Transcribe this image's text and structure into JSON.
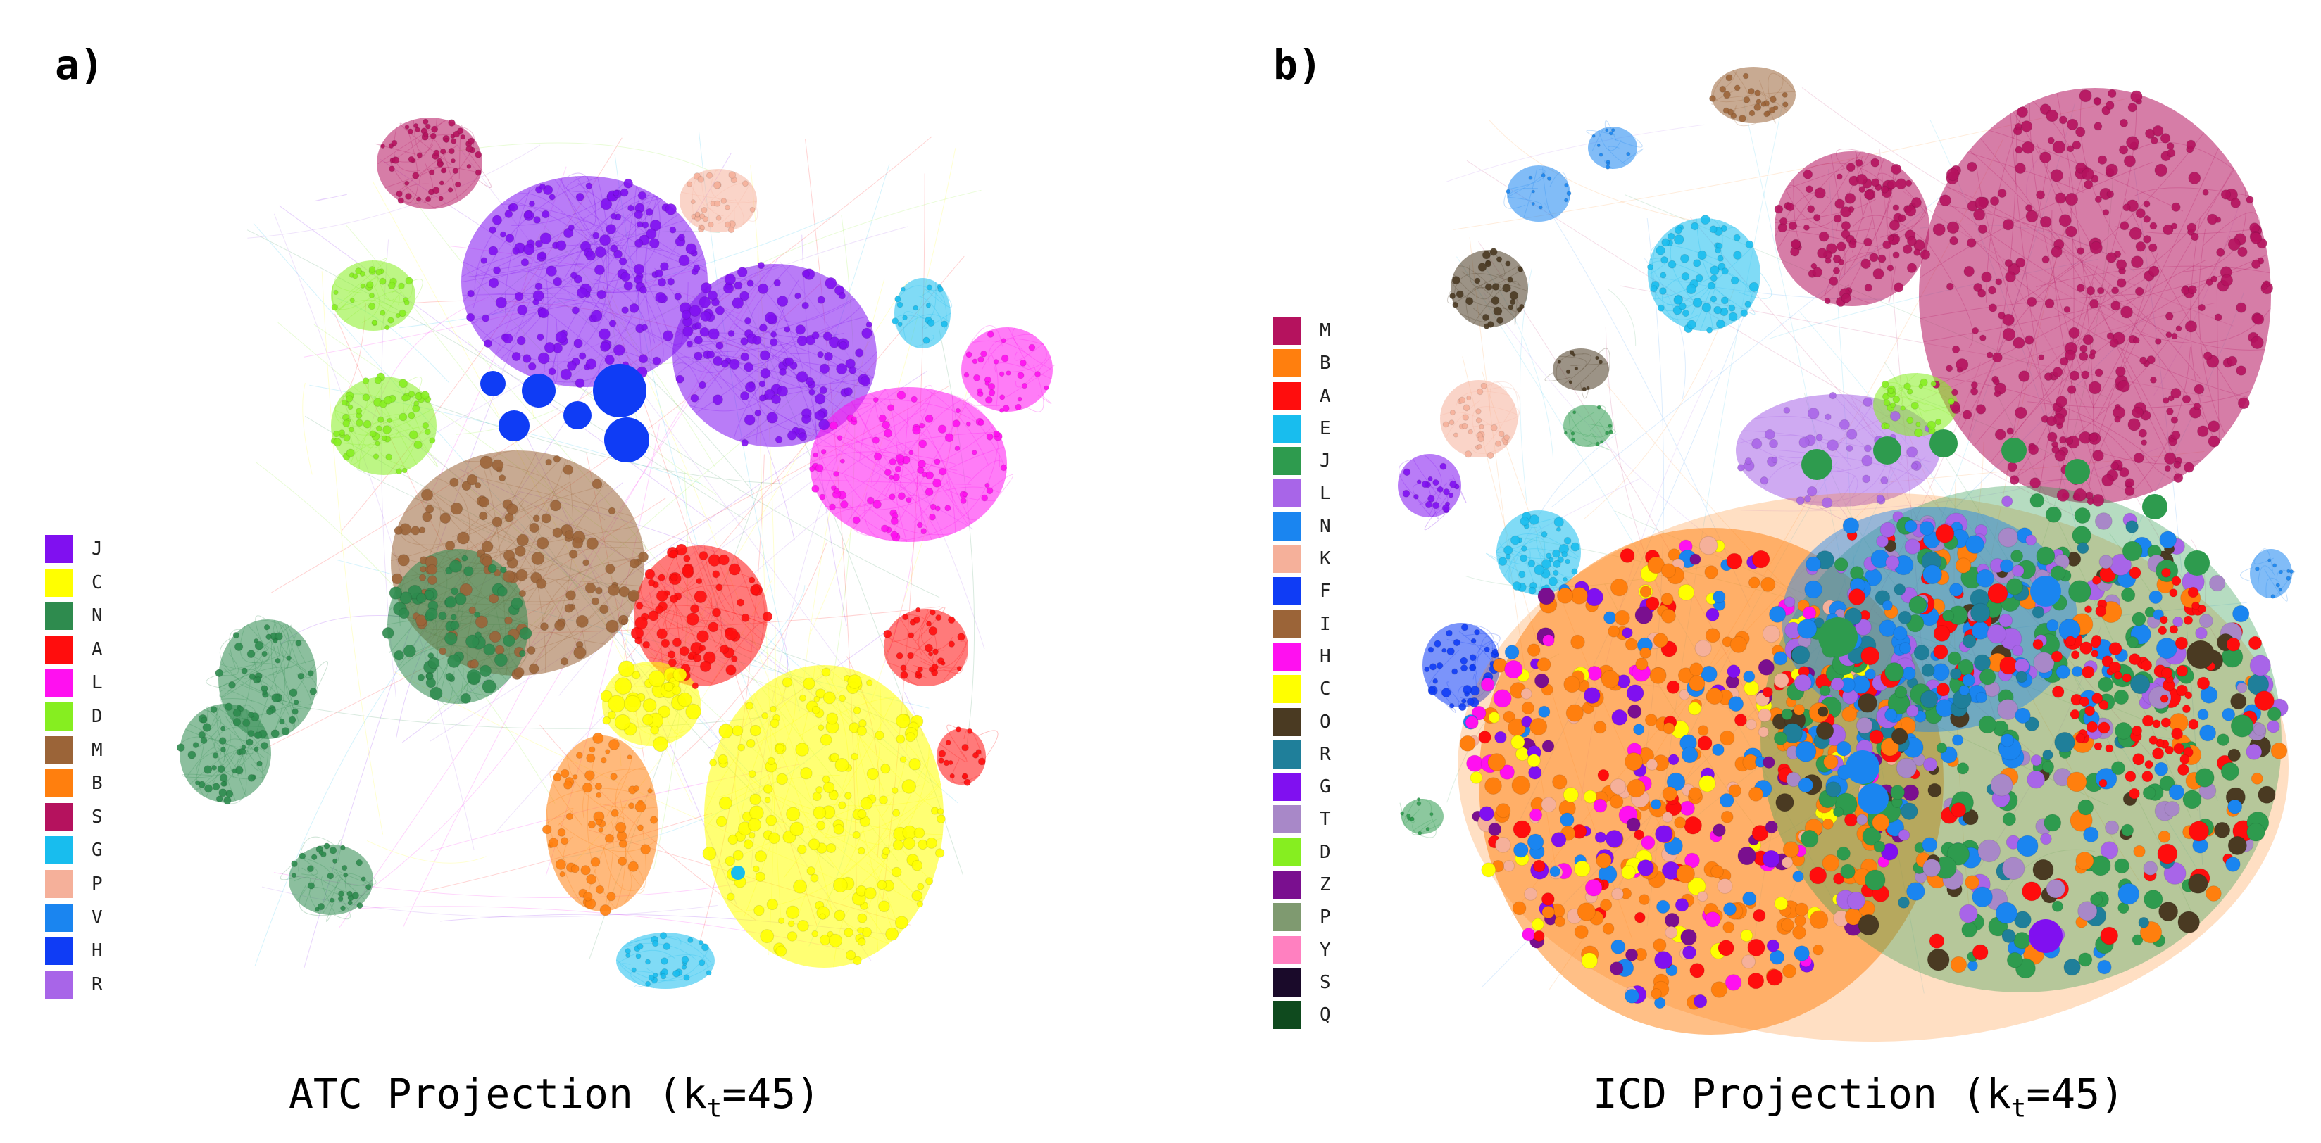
{
  "panels": [
    {
      "id": "a",
      "label": "a)",
      "caption": {
        "main": "ATC Projection (k",
        "sub": "t",
        "tail": "=45)"
      },
      "legend": [
        {
          "label": "J",
          "color": "#8010f0"
        },
        {
          "label": "C",
          "color": "#ffff00"
        },
        {
          "label": "N",
          "color": "#2e8b4e"
        },
        {
          "label": "A",
          "color": "#ff0d0d"
        },
        {
          "label": "L",
          "color": "#ff10f0"
        },
        {
          "label": "D",
          "color": "#86ee20"
        },
        {
          "label": "M",
          "color": "#9b6438"
        },
        {
          "label": "B",
          "color": "#ff7f0e"
        },
        {
          "label": "S",
          "color": "#b5125e"
        },
        {
          "label": "G",
          "color": "#18bdee"
        },
        {
          "label": "P",
          "color": "#f5b09a"
        },
        {
          "label": "V",
          "color": "#1a85f0"
        },
        {
          "label": "H",
          "color": "#0f3cf5"
        },
        {
          "label": "R",
          "color": "#a865e8"
        }
      ]
    },
    {
      "id": "b",
      "label": "b)",
      "caption": {
        "main": "ICD Projection (k",
        "sub": "t",
        "tail": "=45)"
      },
      "legend": [
        {
          "label": "M",
          "color": "#b5125e"
        },
        {
          "label": "B",
          "color": "#ff7f0e"
        },
        {
          "label": "A",
          "color": "#ff0d0d"
        },
        {
          "label": "E",
          "color": "#18bdee"
        },
        {
          "label": "J",
          "color": "#2e9b4e"
        },
        {
          "label": "L",
          "color": "#a865e8"
        },
        {
          "label": "N",
          "color": "#1a85f0"
        },
        {
          "label": "K",
          "color": "#f5b09a"
        },
        {
          "label": "F",
          "color": "#0f3cf5"
        },
        {
          "label": "I",
          "color": "#9b6438"
        },
        {
          "label": "H",
          "color": "#ff10f0"
        },
        {
          "label": "C",
          "color": "#ffff00"
        },
        {
          "label": "O",
          "color": "#4a3a22"
        },
        {
          "label": "R",
          "color": "#1f7f9a"
        },
        {
          "label": "G",
          "color": "#8010f0"
        },
        {
          "label": "T",
          "color": "#a888c8"
        },
        {
          "label": "D",
          "color": "#86ee20"
        },
        {
          "label": "Z",
          "color": "#7a0f8f"
        },
        {
          "label": "P",
          "color": "#7f9a70"
        },
        {
          "label": "Y",
          "color": "#ff80c0"
        },
        {
          "label": "S",
          "color": "#1a0a2a"
        },
        {
          "label": "Q",
          "color": "#0f4a1e"
        }
      ]
    }
  ]
}
